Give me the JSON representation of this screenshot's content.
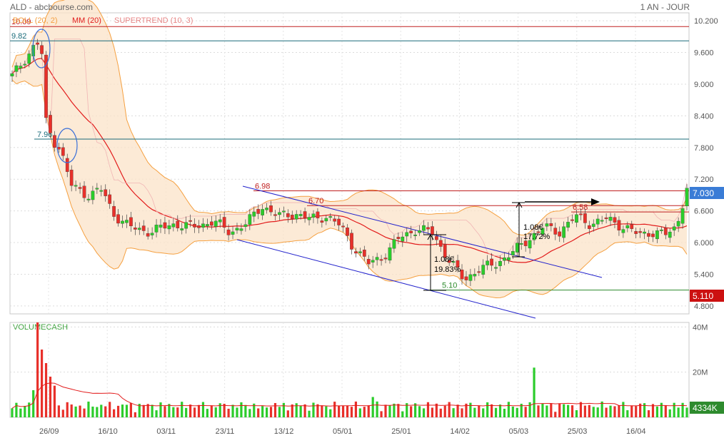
{
  "header": {
    "symbol_source": "ALD - abcbourse.com",
    "period": "1 AN - JOUR"
  },
  "legend": {
    "boll": "BOLL (20, 2)",
    "mm": "MM (20)",
    "supertrend": "SUPERTREND (10, 3)",
    "volume": "VOLUMECASH"
  },
  "colors": {
    "up": "#2bcc2b",
    "down": "#e8302a",
    "boll_band": "#f5a040",
    "boll_fill": "#fbe3c8",
    "mm": "#e21b1b",
    "supertrend": "#f0b4b4",
    "h_blue": "#1a6b7a",
    "h_red": "#c02020",
    "channel": "#2222cc",
    "last_price_bg": "#3a7cd6",
    "vol_tag_bg": "#2e8b2e",
    "low_tag_bg": "#cc1111"
  },
  "chart_data": {
    "type": "candlestick",
    "ylim": [
      4.65,
      10.35
    ],
    "y_ticks": [
      "10.200",
      "9.600",
      "9.000",
      "8.400",
      "7.800",
      "7.200",
      "6.600",
      "6.000",
      "5.400",
      "4.800"
    ],
    "x_ticks": [
      "26/09",
      "16/10",
      "03/11",
      "23/11",
      "13/12",
      "05/01",
      "25/01",
      "14/02",
      "05/03",
      "25/03",
      "16/04"
    ],
    "last_price": "7.030",
    "low_tag": "5.110",
    "horizontal_levels": [
      {
        "value": 10.09,
        "label": "10.09",
        "color": "red"
      },
      {
        "value": 9.82,
        "label": "9.82",
        "color": "blue"
      },
      {
        "value": 7.96,
        "label": "7.96",
        "color": "blue"
      },
      {
        "value": 6.98,
        "label": "6.98",
        "color": "red"
      },
      {
        "value": 6.7,
        "label": "6.70",
        "color": "red"
      },
      {
        "value": 6.58,
        "label": "6.58",
        "color": "red"
      },
      {
        "value": 5.1,
        "label": "5.10",
        "color": "green"
      }
    ],
    "annotations": [
      "1.08€",
      "19.83%",
      "1.08€",
      "17.72%"
    ],
    "vol_ticks": [
      "40M",
      "20M"
    ],
    "last_volume": "4334K",
    "bars": 160,
    "anchors": [
      [
        0,
        9.15
      ],
      [
        8,
        9.7
      ],
      [
        11,
        9.82
      ],
      [
        12,
        8.4
      ],
      [
        14,
        8.1
      ],
      [
        16,
        7.9
      ],
      [
        18,
        7.8
      ],
      [
        22,
        7.1
      ],
      [
        28,
        6.9
      ],
      [
        34,
        7.0
      ],
      [
        38,
        6.55
      ],
      [
        44,
        6.3
      ],
      [
        52,
        6.2
      ],
      [
        60,
        6.35
      ],
      [
        68,
        6.3
      ],
      [
        76,
        6.4
      ],
      [
        82,
        6.2
      ],
      [
        88,
        6.35
      ],
      [
        94,
        6.7
      ],
      [
        100,
        6.5
      ],
      [
        106,
        6.55
      ],
      [
        112,
        6.45
      ],
      [
        118,
        6.5
      ],
      [
        124,
        6.3
      ],
      [
        128,
        5.95
      ],
      [
        134,
        5.6
      ],
      [
        140,
        5.75
      ],
      [
        146,
        6.1
      ],
      [
        152,
        6.25
      ],
      [
        158,
        6.2
      ],
      [
        164,
        5.7
      ],
      [
        170,
        5.3
      ],
      [
        176,
        5.5
      ],
      [
        182,
        5.6
      ],
      [
        188,
        5.8
      ],
      [
        194,
        6.05
      ],
      [
        200,
        6.3
      ],
      [
        206,
        6.2
      ],
      [
        212,
        6.5
      ],
      [
        218,
        6.35
      ],
      [
        224,
        6.45
      ],
      [
        230,
        6.3
      ],
      [
        236,
        6.15
      ],
      [
        240,
        6.2
      ],
      [
        246,
        6.15
      ],
      [
        250,
        6.3
      ],
      [
        254,
        7.03
      ]
    ]
  }
}
